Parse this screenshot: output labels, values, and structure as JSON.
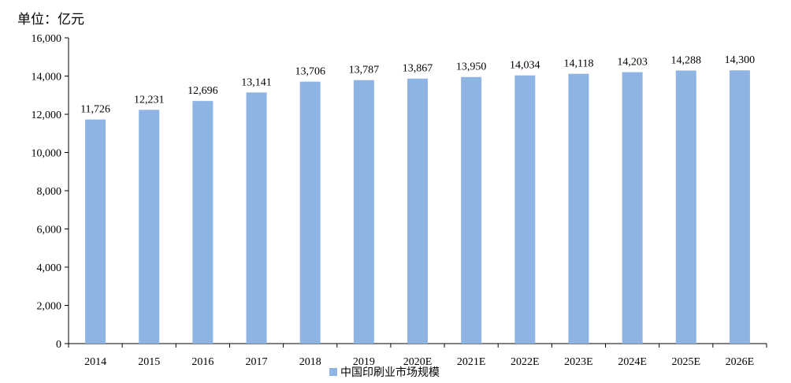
{
  "chart_data": {
    "type": "bar",
    "title": "",
    "unit_label": "单位：亿元",
    "xlabel": "",
    "ylabel": "",
    "categories": [
      "2014",
      "2015",
      "2016",
      "2017",
      "2018",
      "2019",
      "2020E",
      "2021E",
      "2022E",
      "2023E",
      "2024E",
      "2025E",
      "2026E"
    ],
    "series": [
      {
        "name": "中国印刷业市场规模",
        "values": [
          11726,
          12231,
          12696,
          13141,
          13706,
          13787,
          13867,
          13950,
          14034,
          14118,
          14203,
          14288,
          14300
        ],
        "value_labels": [
          "11,726",
          "12,231",
          "12,696",
          "13,141",
          "13,706",
          "13,787",
          "13,867",
          "13,950",
          "14,034",
          "14,118",
          "14,203",
          "14,288",
          "14,300"
        ],
        "color": "#8EB4E3"
      }
    ],
    "ylim": [
      0,
      16000
    ],
    "yticks": [
      0,
      2000,
      4000,
      6000,
      8000,
      10000,
      12000,
      14000,
      16000
    ],
    "ytick_labels": [
      "0",
      "2,000",
      "4,000",
      "6,000",
      "8,000",
      "10,000",
      "12,000",
      "14,000",
      "16,000"
    ],
    "grid": false,
    "legend_position": "bottom"
  }
}
